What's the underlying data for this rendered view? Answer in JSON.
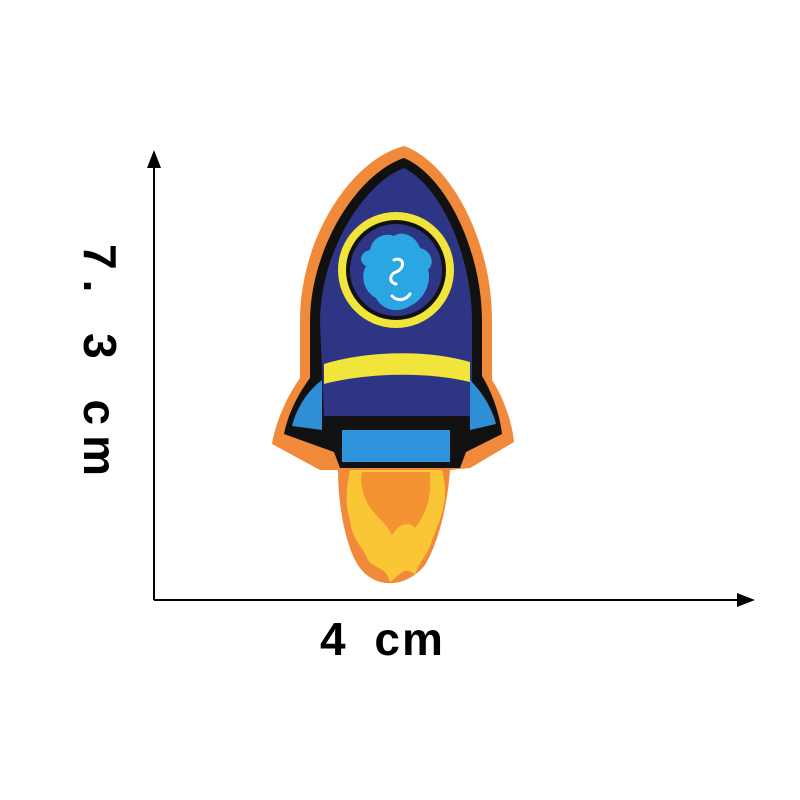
{
  "dimensions": {
    "width_label": "4 cm",
    "height_label": "7. 3 cm"
  },
  "colors": {
    "axis": "#000000",
    "border": "#f08a3a",
    "hull": "#2f3585",
    "outline": "#111111",
    "porthole_ring": "#f1e43a",
    "alien": "#2aa6e3",
    "band": "#f1e43a",
    "fins": "#2e8fd6",
    "exhaust_blue": "#2e95dc",
    "flame_outer": "#fbc635",
    "flame_inner": "#f39331"
  }
}
